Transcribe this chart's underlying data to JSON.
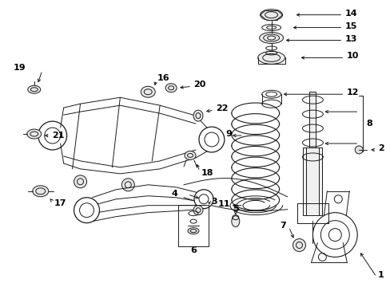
{
  "background_color": "#ffffff",
  "line_color": "#1a1a1a",
  "lw": 0.7,
  "fig_width": 4.89,
  "fig_height": 3.6,
  "dpi": 100
}
